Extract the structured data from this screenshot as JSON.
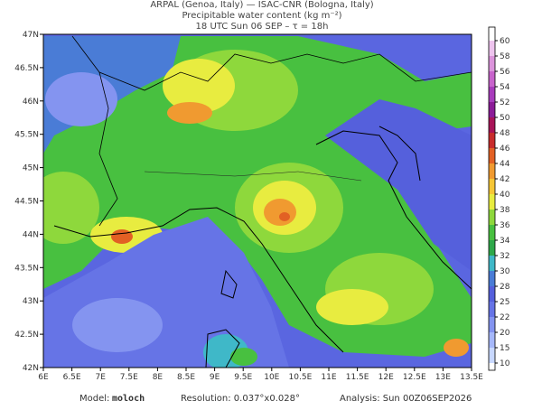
{
  "header": {
    "lines": [
      "ARPAL (Genoa, Italy)  —  ISAC-CNR (Bologna, Italy)",
      "Precipitable water content (kg m⁻²)",
      "18 UTC Sun 06 SEP  –  τ = 18h"
    ]
  },
  "map": {
    "lat_labels": [
      "47N",
      "46.5N",
      "46N",
      "45.5N",
      "45N",
      "44.5N",
      "44N",
      "43.5N",
      "43N",
      "42.5N",
      "42N"
    ],
    "lon_labels": [
      "6E",
      "6.5E",
      "7E",
      "7.5E",
      "8E",
      "8.5E",
      "9E",
      "9.5E",
      "10E",
      "10.5E",
      "11E",
      "11.5E",
      "12E",
      "12.5E",
      "13E",
      "13.5E"
    ]
  },
  "colorbar": {
    "ticks": [
      10,
      15,
      20,
      22,
      25,
      28,
      30,
      32,
      34,
      36,
      38,
      40,
      42,
      44,
      46,
      48,
      50,
      52,
      54,
      56,
      58,
      60
    ],
    "colors": [
      "#c8d8ff",
      "#a6b8fa",
      "#8494f0",
      "#6674e6",
      "#5560dc",
      "#4a7cd6",
      "#3fb8c8",
      "#2ea84a",
      "#48c040",
      "#8ed83c",
      "#e8ec40",
      "#f6c636",
      "#f09a30",
      "#e26024",
      "#c82c2c",
      "#a81458",
      "#8c1c98",
      "#a83cbc",
      "#c864cc",
      "#dc94dc",
      "#eec4ee"
    ]
  },
  "footer": {
    "model_label": "Model:",
    "model": "moloch",
    "resolution": "Resolution: 0.037°x0.028°",
    "analysis": "Analysis: Sun 00Z06SEP2026"
  }
}
